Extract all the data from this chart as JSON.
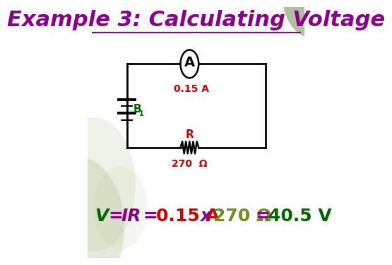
{
  "title": "Example 3: Calculating Voltage",
  "title_color": "#8B008B",
  "title_fontsize": 22,
  "bg_color": "#FFFFFF",
  "corner_color": "#8B9E6E",
  "circuit_color": "#000000",
  "ammeter_current": "0.15 A",
  "ammeter_current_color": "#CC0000",
  "battery_label_color": "#006400",
  "resistor_label_color": "#CC0000",
  "resistor_value": "270  Ω",
  "resistor_value_color": "#CC0000",
  "formula_v_color": "#006400",
  "formula_ir_color": "#8B008B",
  "formula_current_color": "#CC0000",
  "formula_x_color": "#8B008B",
  "formula_resistance_color": "#6B8E23",
  "formula_equals_color": "#8B008B",
  "formula_result_color": "#006400"
}
